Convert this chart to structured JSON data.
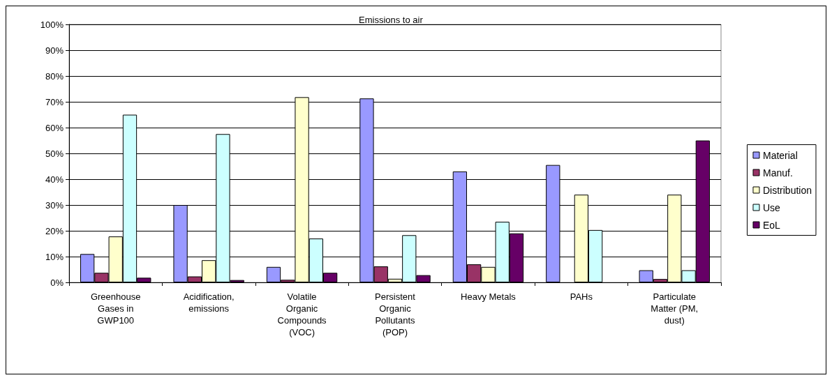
{
  "chart_data": {
    "type": "bar",
    "title": "Emissions to air",
    "categories": [
      "Greenhouse Gases in GWP100",
      "Acidification, emissions",
      "Volatile Organic Compounds (VOC)",
      "Persistent Organic Pollutants (POP)",
      "Heavy Metals",
      "PAHs",
      "Particulate Matter (PM, dust)"
    ],
    "series": [
      {
        "name": "Material",
        "color": "#9999ff",
        "values": [
          11,
          30,
          6,
          71.3,
          43,
          45.5,
          4.7
        ]
      },
      {
        "name": "Manuf.",
        "color": "#993366",
        "values": [
          3.7,
          2.3,
          1,
          6.2,
          7,
          null,
          1.3
        ]
      },
      {
        "name": "Distribution",
        "color": "#ffffcc",
        "values": [
          17.8,
          8.6,
          71.8,
          1.4,
          6,
          34,
          34
        ]
      },
      {
        "name": "Use",
        "color": "#ccffff",
        "values": [
          65,
          57.5,
          17,
          18.3,
          23.5,
          20.3,
          4.7
        ]
      },
      {
        "name": "EoL",
        "color": "#660066",
        "values": [
          1.8,
          0.9,
          3.7,
          2.8,
          19,
          null,
          55
        ]
      }
    ],
    "ylim": [
      0,
      100
    ],
    "yticks": [
      {
        "value": 0,
        "label": "0%"
      },
      {
        "value": 10,
        "label": "10%"
      },
      {
        "value": 20,
        "label": "20%"
      },
      {
        "value": 30,
        "label": "30%"
      },
      {
        "value": 40,
        "label": "40%"
      },
      {
        "value": 50,
        "label": "50%"
      },
      {
        "value": 60,
        "label": "60%"
      },
      {
        "value": 70,
        "label": "70%"
      },
      {
        "value": 80,
        "label": "80%"
      },
      {
        "value": 90,
        "label": "90%"
      },
      {
        "value": 100,
        "label": "100%"
      }
    ],
    "grid": "y",
    "legend": "right"
  }
}
